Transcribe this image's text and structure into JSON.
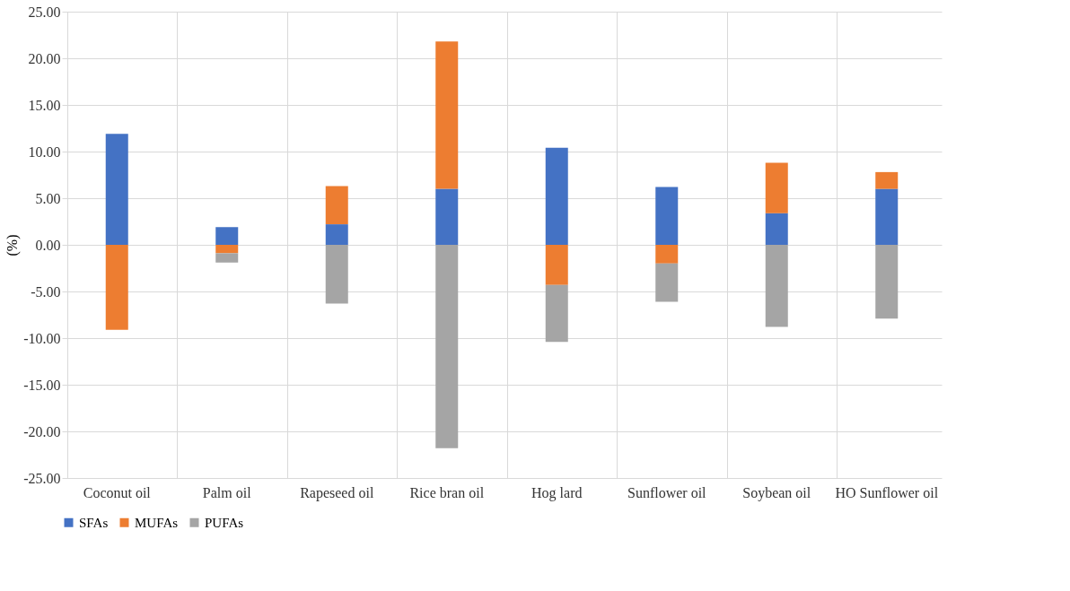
{
  "chart_data": {
    "type": "bar",
    "stacked": true,
    "ylabel": "(%)",
    "categories": [
      "Coconut oil",
      "Palm oil",
      "Rapeseed oil",
      "Rice bran oil",
      "Hog lard",
      "Sunflower oil",
      "Soybean oil",
      "HO Sunflower oil"
    ],
    "series": [
      {
        "name": "SFAs",
        "color": "#4472c4",
        "values": [
          11.9,
          1.9,
          2.2,
          6.0,
          10.4,
          6.2,
          3.4,
          6.0
        ]
      },
      {
        "name": "MUFAs",
        "color": "#ed7d31",
        "values": [
          -9.1,
          -0.9,
          4.1,
          15.8,
          -4.3,
          -2.0,
          5.4,
          1.8
        ]
      },
      {
        "name": "PUFAs",
        "color": "#a5a5a5",
        "values": [
          null,
          -1.0,
          -6.3,
          -21.8,
          -6.1,
          -4.1,
          -8.8,
          -7.9
        ]
      }
    ],
    "ylim": [
      -25,
      25
    ],
    "yticks": [
      {
        "value": -25,
        "label": "-25.00"
      },
      {
        "value": -20,
        "label": "-20.00"
      },
      {
        "value": -15,
        "label": "-15.00"
      },
      {
        "value": -10,
        "label": "-10.00"
      },
      {
        "value": -5,
        "label": "-5.00"
      },
      {
        "value": 0,
        "label": "0.00"
      },
      {
        "value": 5,
        "label": "5.00"
      },
      {
        "value": 10,
        "label": "10.00"
      },
      {
        "value": 15,
        "label": "15.00"
      },
      {
        "value": 20,
        "label": "20.00"
      },
      {
        "value": 25,
        "label": "25.00"
      }
    ],
    "grid": true,
    "legend": "bottom"
  }
}
